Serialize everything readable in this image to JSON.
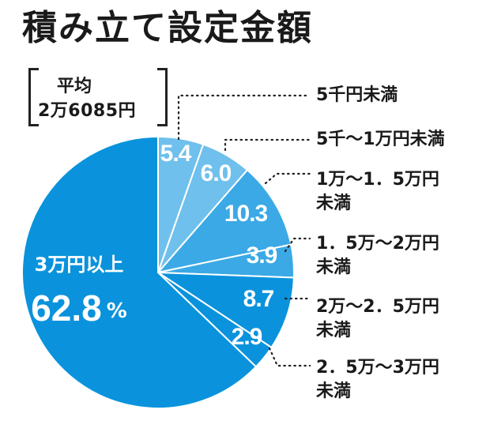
{
  "title": "積み立て設定金額",
  "average": {
    "label": "平均",
    "value": "2万6085円"
  },
  "colors": {
    "lighter": "#6fc0ec",
    "light": "#3aa9e5",
    "main": "#0a93dc",
    "stroke": "#ffffff"
  },
  "chart_data": {
    "type": "pie",
    "unit": "%",
    "categories": [
      "5千円未満",
      "5千～1万円未満",
      "1万～1.5万円未満",
      "1.5万～2万円未満",
      "2万～2.5万円未満",
      "2.5万～3万円未満",
      "3万円以上"
    ],
    "values": [
      5.4,
      6.0,
      10.3,
      3.9,
      8.7,
      2.9,
      62.8
    ],
    "value_labels": [
      "5.4",
      "6.0",
      "10.3",
      "3.9",
      "8.7",
      "2.9",
      "62.8"
    ],
    "category_lines": [
      [
        "5千円未満"
      ],
      [
        "5千～1万円未満"
      ],
      [
        "1万～1．5万円",
        "未満"
      ],
      [
        "1．5万～2万円",
        "未満"
      ],
      [
        "2万～2．5万円",
        "未満"
      ],
      [
        "2．5万～3万円",
        "未満"
      ],
      [
        "3万円以上"
      ]
    ],
    "big_slice": {
      "label": "3万円以上",
      "value": "62.8",
      "unit": "%"
    }
  }
}
